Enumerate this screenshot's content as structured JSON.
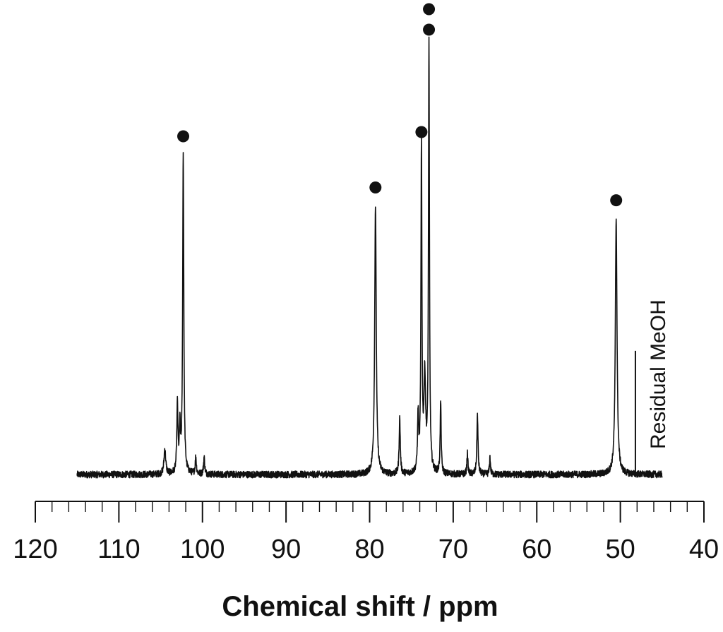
{
  "chart_data": {
    "type": "line",
    "title": "",
    "xlabel": "Chemical shift / ppm",
    "ylabel": "",
    "x_reversed": true,
    "xlim": [
      120,
      40
    ],
    "x_ticks": [
      120,
      110,
      100,
      90,
      80,
      70,
      60,
      50,
      40
    ],
    "x_tick_labels": [
      "120",
      "110",
      "100",
      "90",
      "80",
      "70",
      "60",
      "50",
      "40"
    ],
    "minor_tick_step": 2,
    "grid": false,
    "legend": "none",
    "y_axis_visible": false,
    "x_range": [
      115,
      45
    ],
    "baseline": 0,
    "noise_amplitude": 0.008,
    "peaks": [
      {
        "x": 104.5,
        "height": 0.06,
        "width": 0.12
      },
      {
        "x": 103.0,
        "height": 0.16,
        "width": 0.08
      },
      {
        "x": 102.7,
        "height": 0.1,
        "width": 0.08
      },
      {
        "x": 102.3,
        "height": 0.75,
        "width": 0.08,
        "marked": true
      },
      {
        "x": 100.8,
        "height": 0.04,
        "width": 0.08
      },
      {
        "x": 99.8,
        "height": 0.04,
        "width": 0.08
      },
      {
        "x": 79.3,
        "height": 0.63,
        "width": 0.11,
        "marked": true
      },
      {
        "x": 76.4,
        "height": 0.13,
        "width": 0.08
      },
      {
        "x": 74.2,
        "height": 0.13,
        "width": 0.08
      },
      {
        "x": 73.8,
        "height": 0.76,
        "width": 0.07,
        "marked": true
      },
      {
        "x": 73.4,
        "height": 0.22,
        "width": 0.12
      },
      {
        "x": 72.9,
        "height": 1.0,
        "width": 0.07,
        "marked": true,
        "marker_count": 2
      },
      {
        "x": 71.5,
        "height": 0.17,
        "width": 0.07
      },
      {
        "x": 68.3,
        "height": 0.05,
        "width": 0.07
      },
      {
        "x": 67.1,
        "height": 0.14,
        "width": 0.08
      },
      {
        "x": 65.6,
        "height": 0.04,
        "width": 0.07
      },
      {
        "x": 50.5,
        "height": 0.6,
        "width": 0.12,
        "marked": true
      }
    ],
    "annotations": [
      {
        "x": 48.2,
        "text": "Residual MeOH",
        "height": 0.29
      }
    ]
  }
}
